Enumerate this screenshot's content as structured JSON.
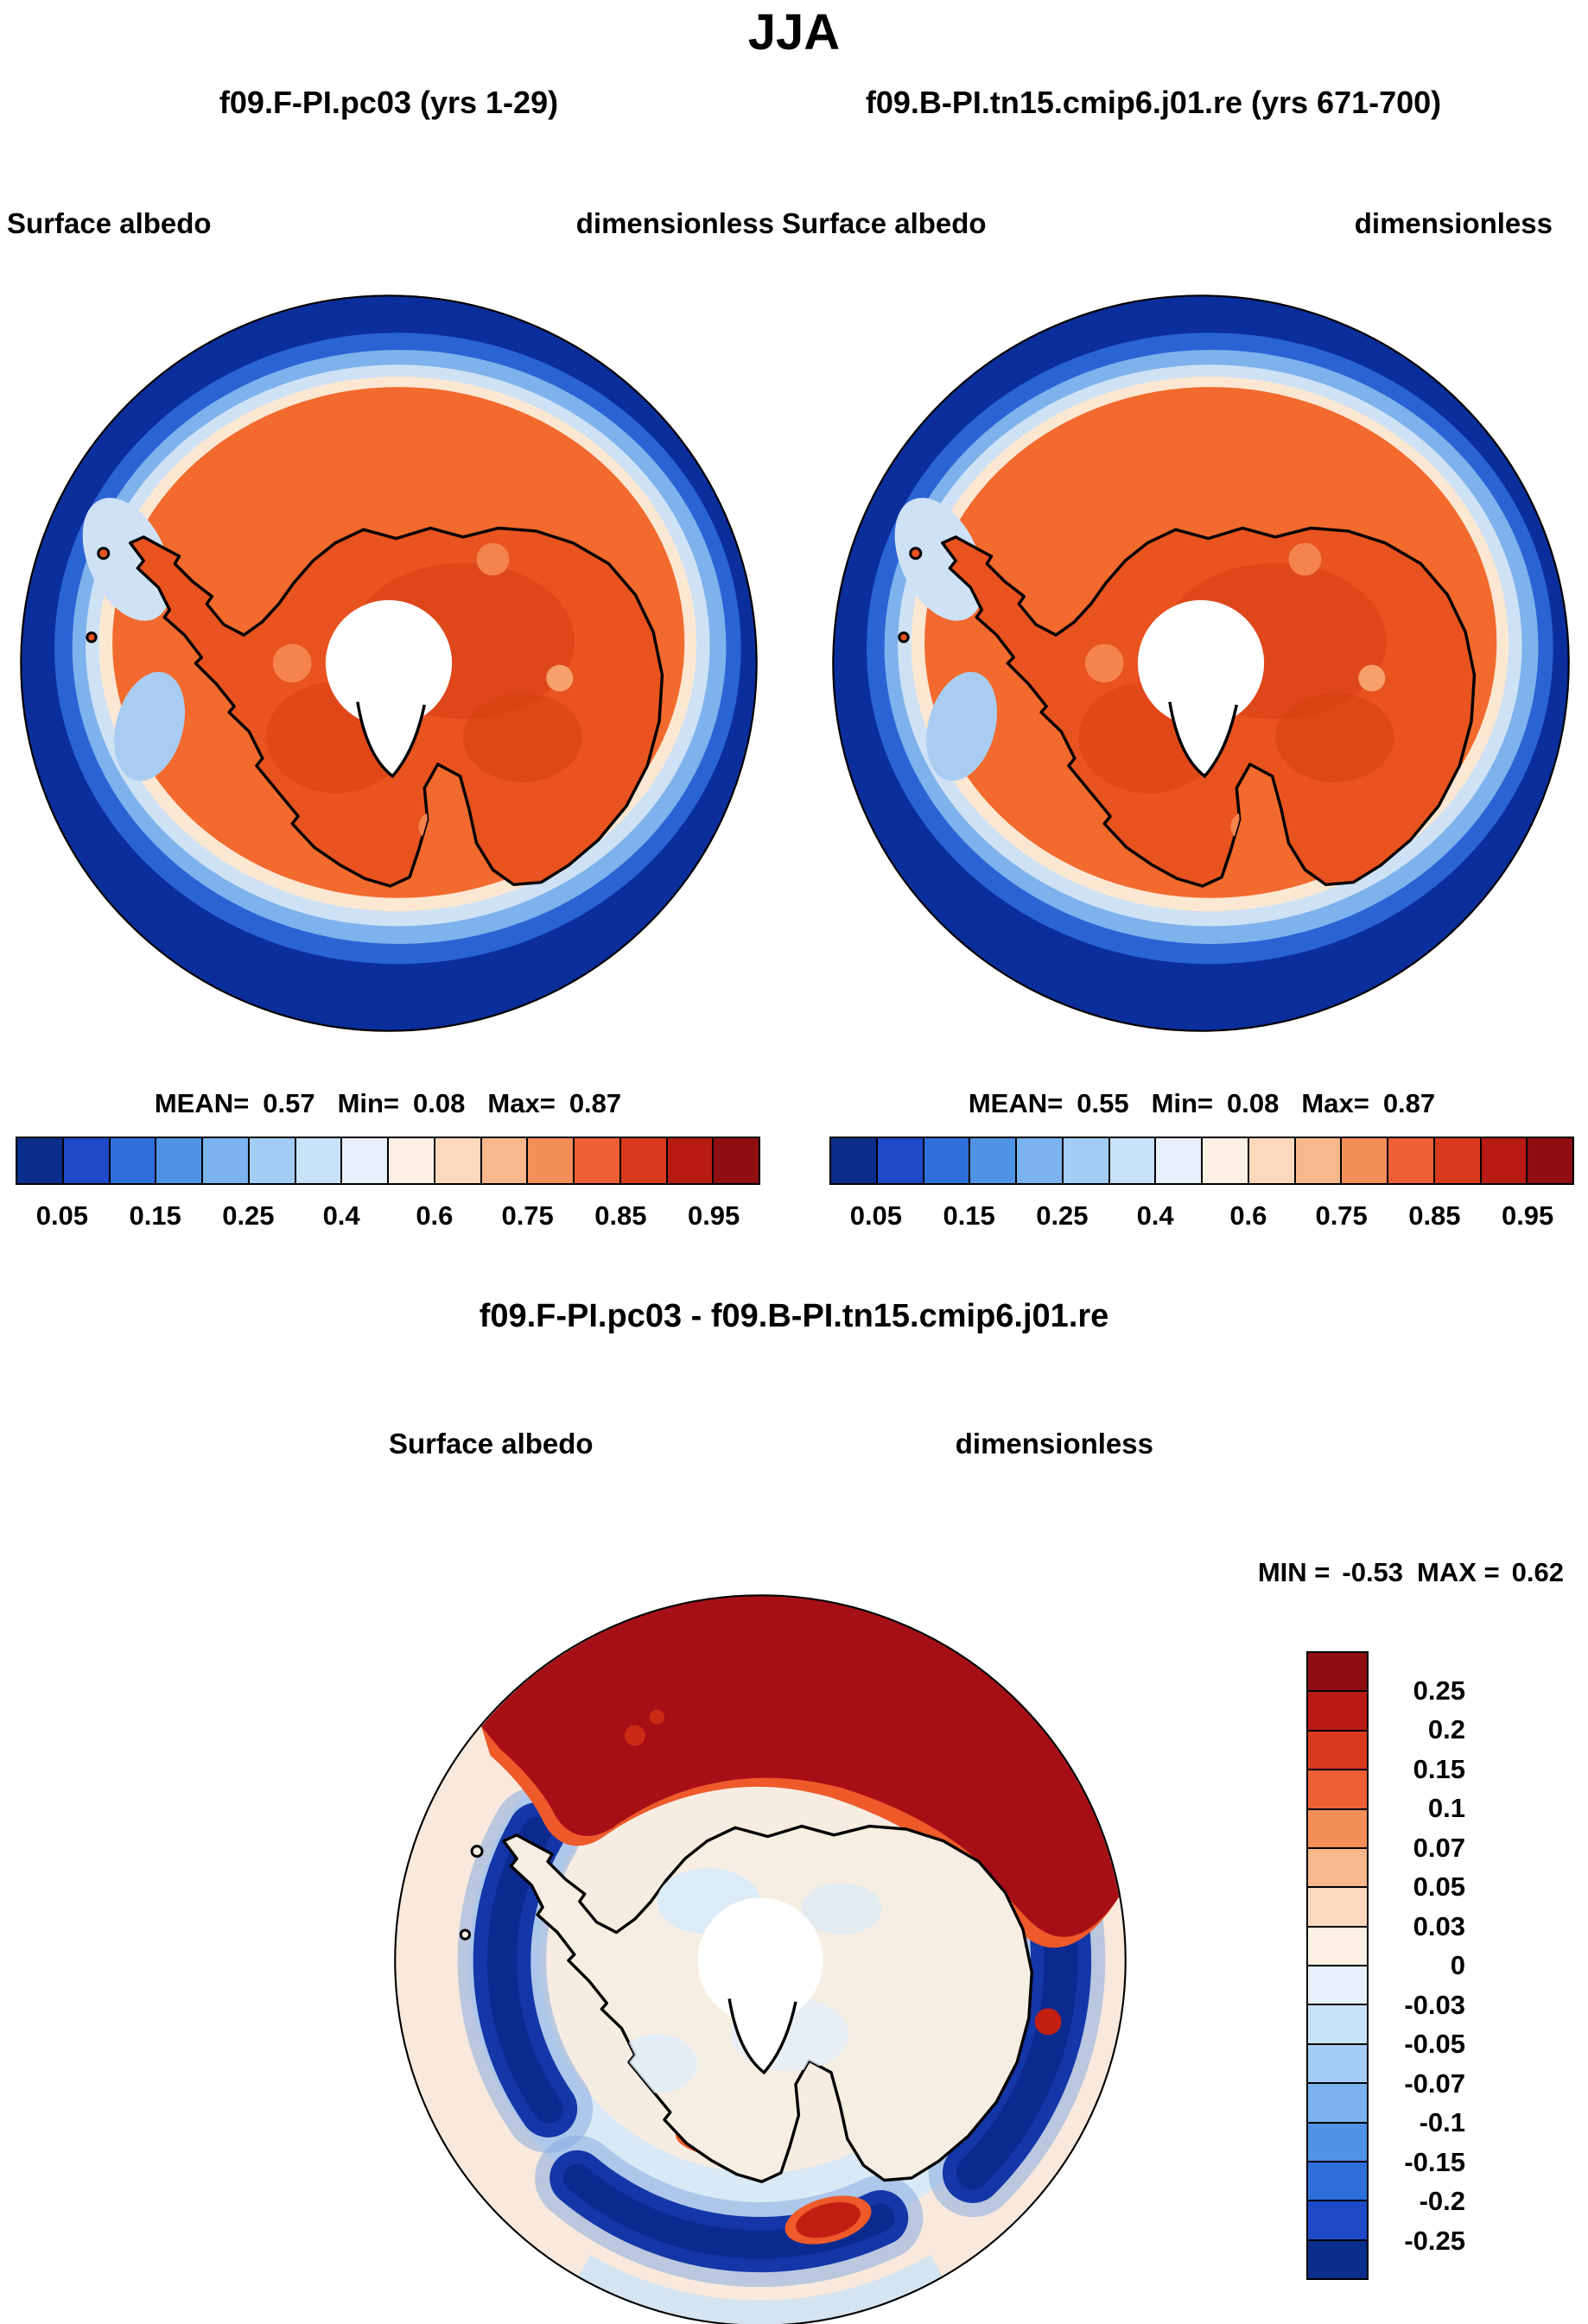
{
  "figure": {
    "season_title": "JJA",
    "panels": [
      {
        "header": "f09.F-PI.pc03 (yrs 1-29)",
        "var_label": "Surface albedo",
        "units_label": "dimensionless",
        "stats": {
          "mean_label": "MEAN=",
          "mean": "0.57",
          "min_label": "Min=",
          "min": "0.08",
          "max_label": "Max=",
          "max": "0.87"
        }
      },
      {
        "header": "f09.B-PI.tn15.cmip6.j01.re (yrs 671-700)",
        "var_label": "Surface albedo",
        "units_label": "dimensionless",
        "stats": {
          "mean_label": "MEAN=",
          "mean": "0.55",
          "min_label": "Min=",
          "min": "0.08",
          "max_label": "Max=",
          "max": "0.87"
        }
      }
    ],
    "diff": {
      "title": "f09.F-PI.pc03 - f09.B-PI.tn15.cmip6.j01.re",
      "var_label": "Surface albedo",
      "units_label": "dimensionless",
      "min_label": "MIN =",
      "min": "-0.53",
      "max_label": "MAX =",
      "max": "0.62"
    },
    "albedo_colorbar": {
      "tick_labels": [
        "0.05",
        "0.15",
        "0.25",
        "0.4",
        "0.6",
        "0.75",
        "0.85",
        "0.95"
      ],
      "colors": [
        "#0b2d8c",
        "#1e49c8",
        "#2f6fdb",
        "#4f93e6",
        "#7ab3ef",
        "#a3cdf5",
        "#c8e2fa",
        "#e8f1fb",
        "#fdf0e4",
        "#fcd9bd",
        "#f9b78c",
        "#f68e5a",
        "#ee5f33",
        "#d93a1e",
        "#b71b13",
        "#8f0e12"
      ]
    },
    "diff_colorbar": {
      "tick_labels": [
        "0.25",
        "0.2",
        "0.15",
        "0.1",
        "0.07",
        "0.05",
        "0.03",
        "0",
        "-0.03",
        "-0.05",
        "-0.07",
        "-0.1",
        "-0.15",
        "-0.2",
        "-0.25"
      ],
      "colors": [
        "#8f0e12",
        "#b71b13",
        "#d93a1e",
        "#ee5f33",
        "#f68e5a",
        "#f9b78c",
        "#fcd9bd",
        "#fdf0e4",
        "#e8f1fb",
        "#c8e2fa",
        "#a3cdf5",
        "#7ab3ef",
        "#4f93e6",
        "#2f6fdb",
        "#1e49c8",
        "#0b2d8c"
      ]
    }
  },
  "chart_data": [
    {
      "type": "heatmap",
      "subtype": "south-polar-stereographic-filled-contour-map",
      "season": "JJA",
      "title": "f09.F-PI.pc03 (yrs 1-29)",
      "variable": "Surface albedo",
      "units": "dimensionless",
      "region": "Antarctica and Southern Ocean",
      "stats": {
        "mean": 0.57,
        "min": 0.08,
        "max": 0.87
      },
      "labeled_levels": [
        0.05,
        0.15,
        0.25,
        0.4,
        0.6,
        0.75,
        0.85,
        0.95
      ],
      "colormap": "blue-to-red",
      "legend_position": "bottom"
    },
    {
      "type": "heatmap",
      "subtype": "south-polar-stereographic-filled-contour-map",
      "season": "JJA",
      "title": "f09.B-PI.tn15.cmip6.j01.re (yrs 671-700)",
      "variable": "Surface albedo",
      "units": "dimensionless",
      "region": "Antarctica and Southern Ocean",
      "stats": {
        "mean": 0.55,
        "min": 0.08,
        "max": 0.87
      },
      "labeled_levels": [
        0.05,
        0.15,
        0.25,
        0.4,
        0.6,
        0.75,
        0.85,
        0.95
      ],
      "colormap": "blue-to-red",
      "legend_position": "bottom"
    },
    {
      "type": "heatmap",
      "subtype": "south-polar-stereographic-filled-contour-map",
      "season": "JJA",
      "title": "f09.F-PI.pc03 - f09.B-PI.tn15.cmip6.j01.re",
      "variable": "Surface albedo difference",
      "units": "dimensionless",
      "region": "Antarctica and Southern Ocean",
      "stats": {
        "min": -0.53,
        "max": 0.62
      },
      "labeled_levels": [
        -0.25,
        -0.2,
        -0.15,
        -0.1,
        -0.07,
        -0.05,
        -0.03,
        0,
        0.03,
        0.05,
        0.07,
        0.1,
        0.15,
        0.2,
        0.25
      ],
      "colormap": "blue-to-red",
      "legend_position": "right"
    }
  ]
}
